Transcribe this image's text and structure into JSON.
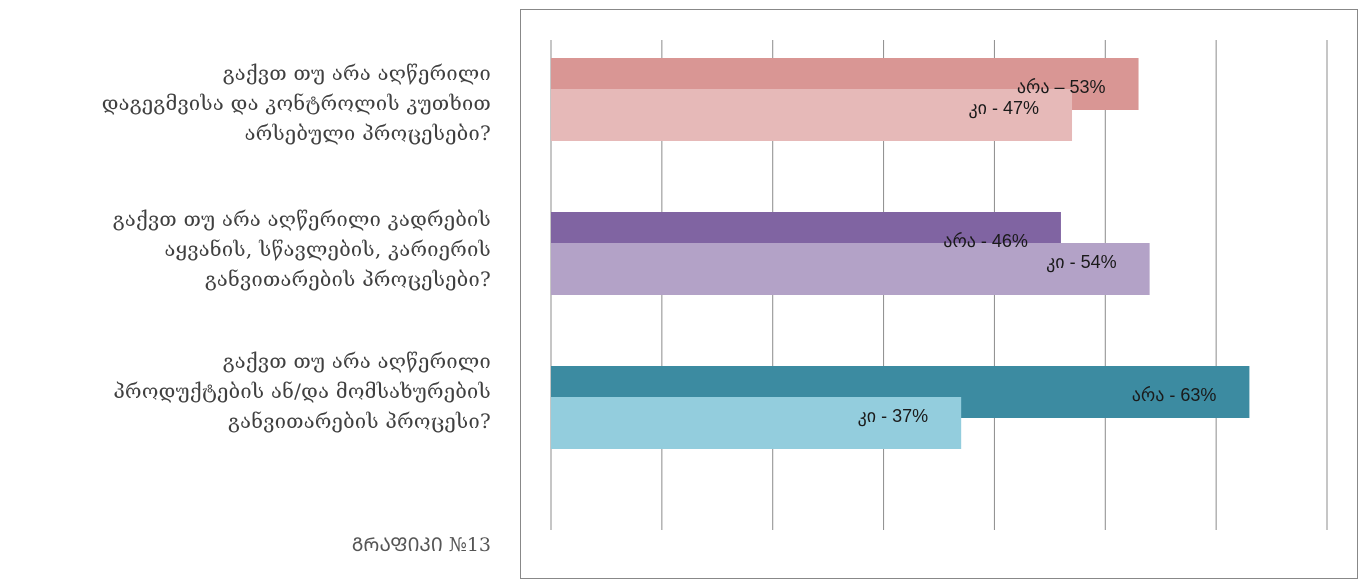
{
  "questions": [
    {
      "lines": [
        "გაქვთ თუ არა აღწერილი",
        "დაგეგმვისა და კონტროლის კუთხით",
        "არსებული პროცესები?"
      ]
    },
    {
      "lines": [
        "გაქვთ თუ არა აღწერილი კადრების",
        "აყვანის, სწავლების, კარიერის",
        "განვითარების პროცესები?"
      ]
    },
    {
      "lines": [
        "გაქვთ თუ არა აღწერილი",
        "პროდუქტების ან/და მომსახურების",
        "განვითარების პროცესი?"
      ]
    }
  ],
  "caption": "ᲒᲠᲐᲤᲘᲙᲘ №13",
  "chart_data": {
    "type": "bar",
    "orientation": "horizontal",
    "grid": true,
    "xlim": [
      0,
      70
    ],
    "groups": [
      {
        "bars": [
          {
            "value": 53,
            "label": "არა  –  53%",
            "color": "#d99694"
          },
          {
            "value": 47,
            "label": "კი  -  47%",
            "color": "#e6b9b8"
          }
        ]
      },
      {
        "bars": [
          {
            "value": 46,
            "label": "არა - 46%",
            "color": "#8064a2"
          },
          {
            "value": 54,
            "label": "კი - 54%",
            "color": "#b3a2c7"
          }
        ]
      },
      {
        "bars": [
          {
            "value": 63,
            "label": "არა - 63%",
            "color": "#3c8ba1"
          },
          {
            "value": 37,
            "label": "კი - 37%",
            "color": "#93cddd"
          }
        ]
      }
    ]
  }
}
